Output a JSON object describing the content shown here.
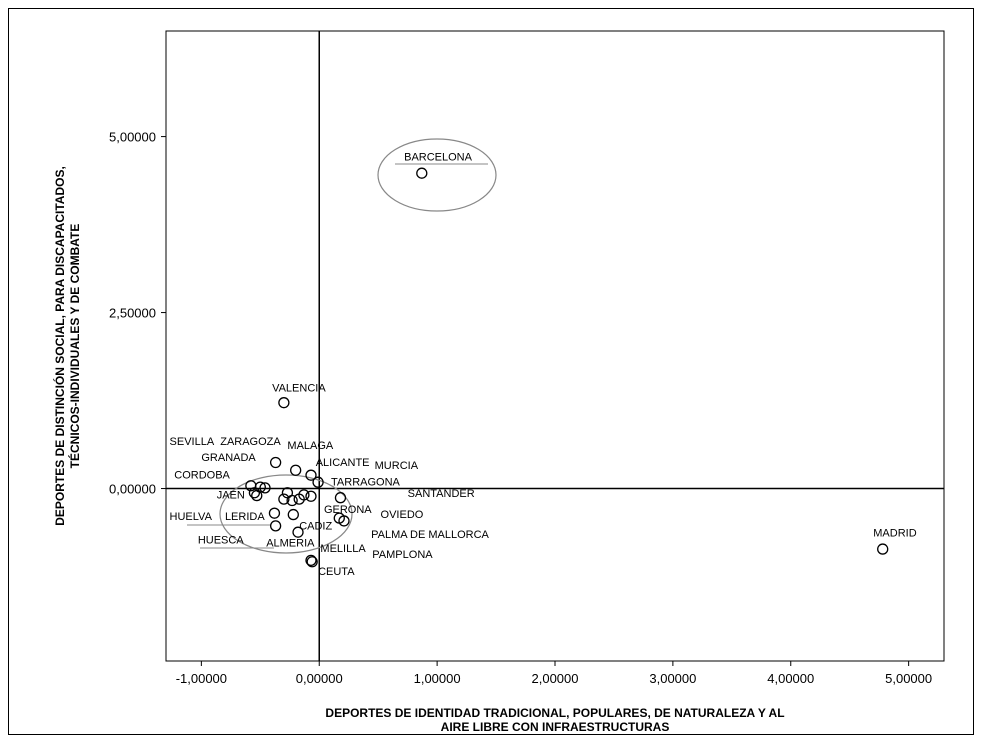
{
  "chart_data": {
    "type": "scatter",
    "title": "",
    "xlabel_lines": [
      "DEPORTES DE IDENTIDAD TRADICIONAL, POPULARES, DE NATURALEZA Y AL",
      "AIRE LIBRE CON INFRAESTRUCTURAS"
    ],
    "ylabel_lines": [
      "DEPORTES DE DISTINCIÓN SOCIAL, PARA DISCAPACITADOS,",
      "TÉCNICOS-INDIVIDUALES Y DE COMBATE"
    ],
    "xlim": [
      -1.3,
      5.3
    ],
    "ylim": [
      -2.45,
      6.5
    ],
    "x_ticks": [
      {
        "value": -1,
        "label": "-1,00000"
      },
      {
        "value": 0,
        "label": "0,00000"
      },
      {
        "value": 1,
        "label": "1,00000"
      },
      {
        "value": 2,
        "label": "2,00000"
      },
      {
        "value": 3,
        "label": "3,00000"
      },
      {
        "value": 4,
        "label": "4,00000"
      },
      {
        "value": 5,
        "label": "5,00000"
      }
    ],
    "y_ticks": [
      {
        "value": 0,
        "label": "0,00000"
      },
      {
        "value": 2.5,
        "label": "2,50000"
      },
      {
        "value": 5,
        "label": "5,00000"
      }
    ],
    "reference_lines": {
      "x": 0,
      "y": 0
    },
    "points": [
      {
        "x": 0.87,
        "y": 4.48
      },
      {
        "x": -0.3,
        "y": 1.22
      },
      {
        "x": 4.78,
        "y": -0.86
      },
      {
        "x": -0.37,
        "y": 0.37
      },
      {
        "x": -0.2,
        "y": 0.26
      },
      {
        "x": -0.07,
        "y": 0.19
      },
      {
        "x": -0.01,
        "y": 0.09
      },
      {
        "x": -0.58,
        "y": 0.04
      },
      {
        "x": -0.5,
        "y": 0.02
      },
      {
        "x": -0.46,
        "y": 0.01
      },
      {
        "x": -0.55,
        "y": -0.06
      },
      {
        "x": -0.53,
        "y": -0.1
      },
      {
        "x": -0.27,
        "y": -0.06
      },
      {
        "x": -0.3,
        "y": -0.15
      },
      {
        "x": -0.23,
        "y": -0.17
      },
      {
        "x": -0.17,
        "y": -0.15
      },
      {
        "x": -0.13,
        "y": -0.09
      },
      {
        "x": -0.07,
        "y": -0.11
      },
      {
        "x": 0.18,
        "y": -0.13
      },
      {
        "x": -0.38,
        "y": -0.35
      },
      {
        "x": -0.37,
        "y": -0.53
      },
      {
        "x": -0.22,
        "y": -0.37
      },
      {
        "x": -0.18,
        "y": -0.62
      },
      {
        "x": 0.17,
        "y": -0.42
      },
      {
        "x": 0.21,
        "y": -0.46
      },
      {
        "x": -0.07,
        "y": -1.02
      },
      {
        "x": -0.06,
        "y": -1.04
      }
    ],
    "annotations": [
      {
        "text": "BARCELONA",
        "x": 0.72,
        "y": 4.66
      },
      {
        "text": "VALENCIA",
        "x": -0.4,
        "y": 1.38
      },
      {
        "text": "MADRID",
        "x": 4.7,
        "y": -0.68
      },
      {
        "text": "SEVILLA",
        "x": -1.27,
        "y": 0.62
      },
      {
        "text": "ZARAGOZA",
        "x": -0.84,
        "y": 0.62
      },
      {
        "text": "MALAGA",
        "x": -0.27,
        "y": 0.56
      },
      {
        "text": "GRANADA",
        "x": -1.0,
        "y": 0.39
      },
      {
        "text": "ALICANTE",
        "x": -0.03,
        "y": 0.32
      },
      {
        "text": "MURCIA",
        "x": 0.47,
        "y": 0.28
      },
      {
        "text": "CORDOBA",
        "x": -1.23,
        "y": 0.14
      },
      {
        "text": "TARRAGONA",
        "x": 0.1,
        "y": 0.04
      },
      {
        "text": "SANTANDER",
        "x": 0.75,
        "y": -0.12
      },
      {
        "text": "JAEN",
        "x": -0.87,
        "y": -0.14
      },
      {
        "text": "GERONA",
        "x": 0.04,
        "y": -0.35
      },
      {
        "text": "OVIEDO",
        "x": 0.52,
        "y": -0.42
      },
      {
        "text": "HUELVA",
        "x": -1.27,
        "y": -0.45
      },
      {
        "text": "LERIDA",
        "x": -0.8,
        "y": -0.45
      },
      {
        "text": "CADIZ",
        "x": -0.17,
        "y": -0.58
      },
      {
        "text": "PALMA DE MALLORCA",
        "x": 0.44,
        "y": -0.7
      },
      {
        "text": "HUESCA",
        "x": -1.03,
        "y": -0.78
      },
      {
        "text": "ALMERIA",
        "x": -0.45,
        "y": -0.82
      },
      {
        "text": "MELILLA",
        "x": 0.01,
        "y": -0.9
      },
      {
        "text": "PAMPLONA",
        "x": 0.45,
        "y": -0.99
      },
      {
        "text": "CEUTA",
        "x": -0.01,
        "y": -1.23
      }
    ],
    "grid": false,
    "legend": "none",
    "colors": {
      "point": "#000000",
      "ellipse": "#888888",
      "axis": "#000000"
    }
  }
}
